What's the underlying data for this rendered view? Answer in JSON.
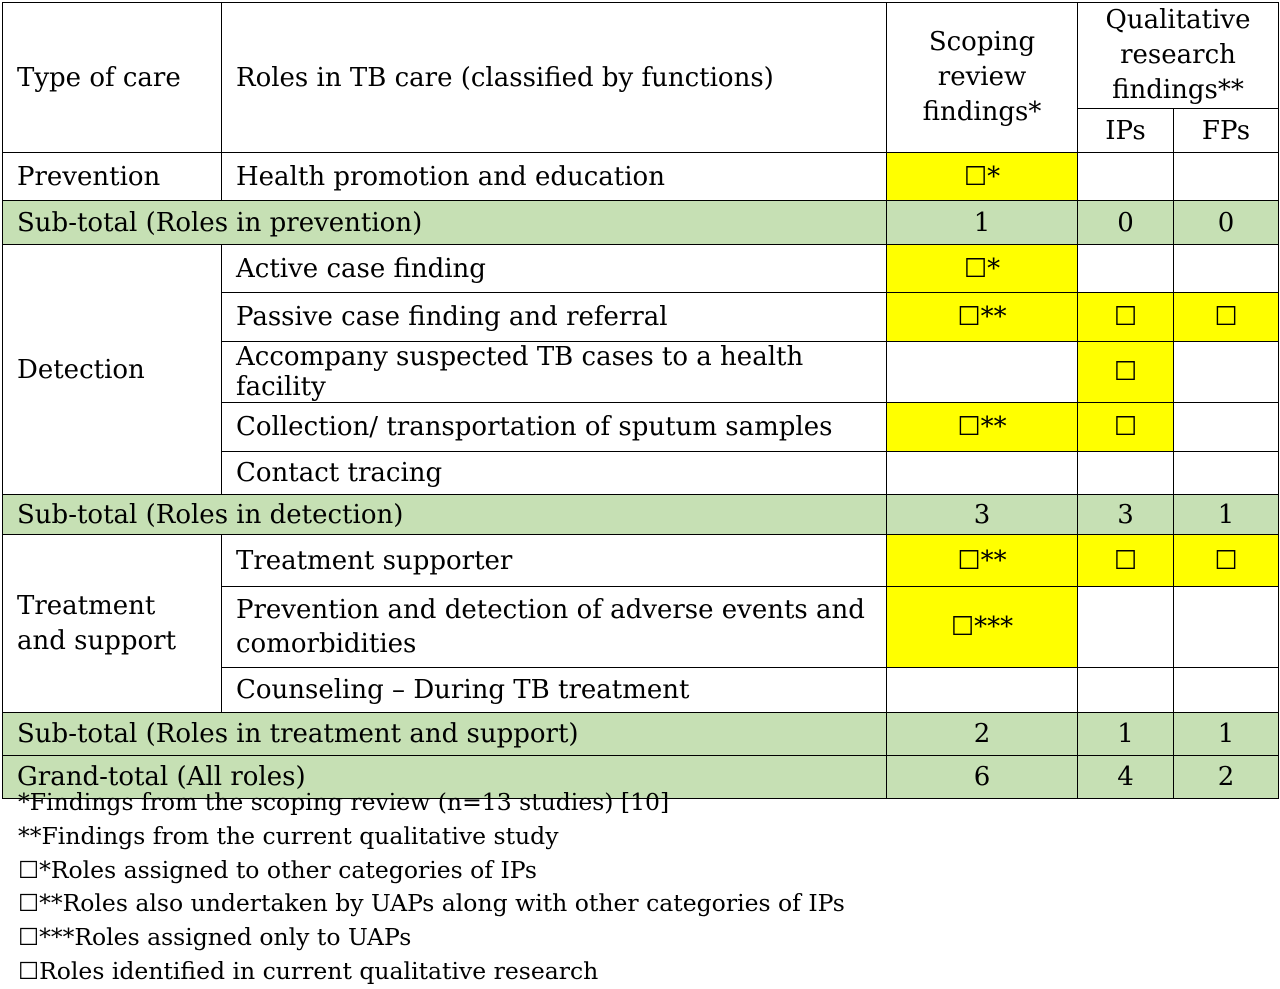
{
  "header": {
    "type_of_care": "Type of care",
    "roles": "Roles in TB care (classified by functions)",
    "scoping": "Scoping review findings",
    "scoping_mark": "*",
    "qualitative": "Qualitative research findings",
    "qualitative_mark": "**",
    "ips": "IPs",
    "fps": "FPs"
  },
  "mark": "☐",
  "sections": {
    "prevention": {
      "label": "Prevention",
      "rows": [
        {
          "role": "Health promotion and education",
          "scoping": "☐*",
          "ips": "",
          "fps": ""
        }
      ],
      "subtotal": {
        "label": "Sub-total (Roles in prevention)",
        "scoping": "1",
        "ips": "0",
        "fps": "0"
      }
    },
    "detection": {
      "label": "Detection",
      "rows": [
        {
          "role": "Active case finding",
          "scoping": "☐*",
          "ips": "",
          "fps": ""
        },
        {
          "role": "Passive case finding and referral",
          "scoping": "☐**",
          "ips": "☐",
          "fps": "☐"
        },
        {
          "role": "Accompany suspected TB cases to a health facility",
          "scoping": "",
          "ips": "☐",
          "fps": ""
        },
        {
          "role": "Collection/ transportation of sputum samples",
          "scoping": "☐**",
          "ips": "☐",
          "fps": ""
        },
        {
          "role": "Contact tracing",
          "scoping": "",
          "ips": "",
          "fps": ""
        }
      ],
      "subtotal": {
        "label": "Sub-total (Roles in detection)",
        "scoping": "3",
        "ips": "3",
        "fps": "1"
      }
    },
    "treatment": {
      "label": "Treatment and support",
      "rows": [
        {
          "role": "Treatment supporter",
          "scoping": "☐**",
          "ips": "☐",
          "fps": "☐"
        },
        {
          "role": "Prevention and detection of adverse events and comorbidities",
          "scoping": "☐***",
          "ips": "",
          "fps": ""
        },
        {
          "role": "Counseling – During TB treatment",
          "scoping": "",
          "ips": "",
          "fps": ""
        }
      ],
      "subtotal": {
        "label": "Sub-total (Roles in treatment and support)",
        "scoping": "2",
        "ips": "1",
        "fps": "1"
      }
    }
  },
  "grand_total": {
    "label": "Grand-total (All roles)",
    "scoping": "6",
    "ips": "4",
    "fps": "2"
  },
  "footnotes": [
    "*Findings from the scoping review (n=13 studies) [10]",
    "**Findings from the current qualitative study",
    "☐*Roles assigned to other categories of IPs",
    "☐**Roles also undertaken by UAPs along with other categories of IPs",
    "☐***Roles assigned only to UAPs",
    "☐Roles identified in current qualitative research"
  ],
  "colors": {
    "highlight": "#ffff00",
    "subtotal": "#c6e0b4"
  }
}
